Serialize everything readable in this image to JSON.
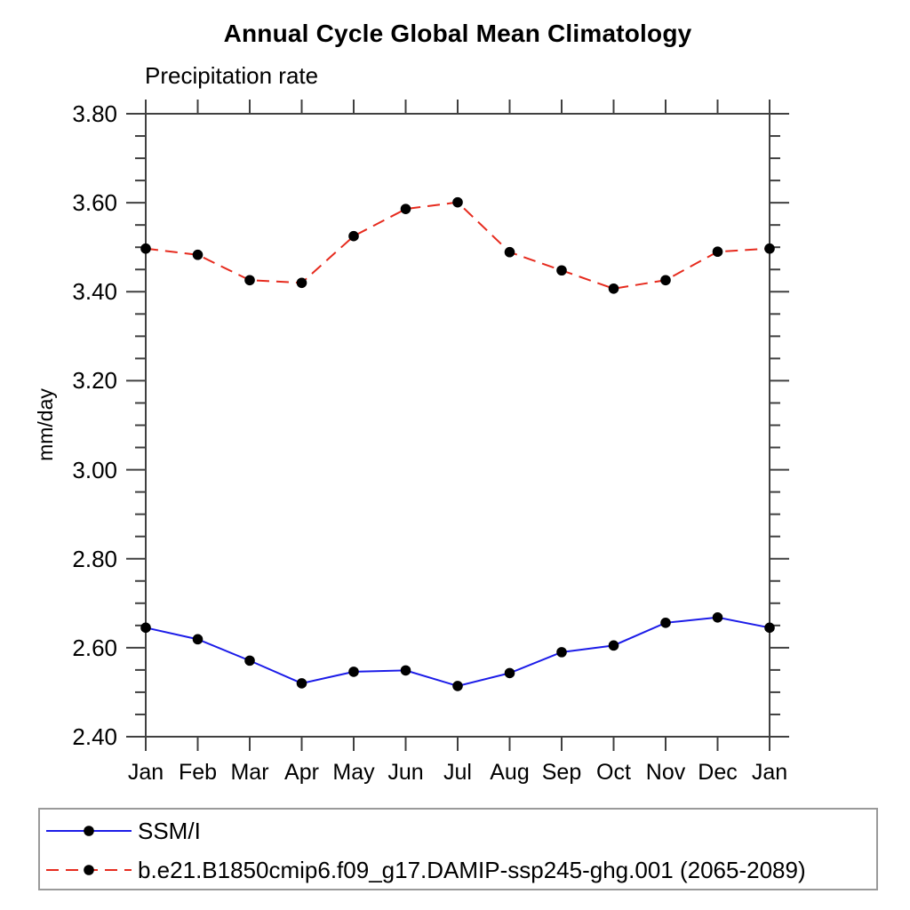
{
  "chart_data": {
    "type": "line",
    "title": "Annual Cycle Global Mean Climatology",
    "subtitle": "Precipitation rate",
    "ylabel": "mm/day",
    "categories": [
      "Jan",
      "Feb",
      "Mar",
      "Apr",
      "May",
      "Jun",
      "Jul",
      "Aug",
      "Sep",
      "Oct",
      "Nov",
      "Dec",
      "Jan"
    ],
    "ylim": [
      2.4,
      3.8
    ],
    "y_tick_labels": [
      "3.80",
      "3.60",
      "3.40",
      "3.20",
      "3.00",
      "2.80",
      "2.60",
      "2.40"
    ],
    "y_major_step": 0.2,
    "y_minor_step": 0.05,
    "grid": false,
    "legend_position": "bottom",
    "axis_color": "#404040",
    "marker_color": "#000000",
    "series": [
      {
        "name": "SSM/I",
        "color": "#1c1ce8",
        "line_style": "solid",
        "values": [
          2.645,
          2.619,
          2.571,
          2.52,
          2.546,
          2.549,
          2.514,
          2.543,
          2.59,
          2.605,
          2.656,
          2.668,
          2.645
        ]
      },
      {
        "name": "b.e21.B1850cmip6.f09_g17.DAMIP-ssp245-ghg.001 (2065-2089)",
        "color": "#e62b1e",
        "line_style": "dashed",
        "values": [
          3.497,
          3.483,
          3.426,
          3.42,
          3.525,
          3.586,
          3.601,
          3.489,
          3.448,
          3.407,
          3.426,
          3.49,
          3.497
        ]
      }
    ]
  }
}
